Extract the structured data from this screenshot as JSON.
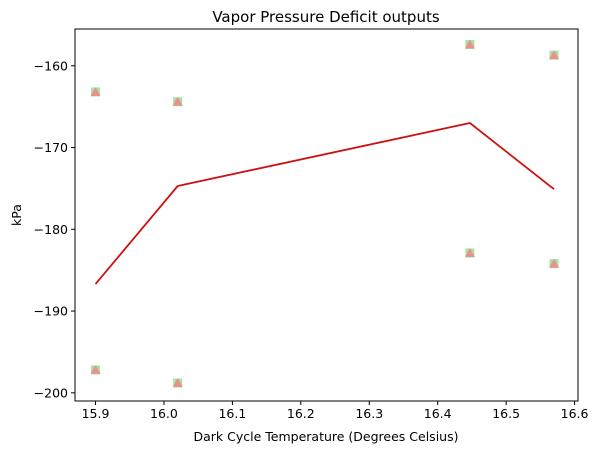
{
  "chart_data": {
    "type": "line",
    "title": "Vapor Pressure Deficit outputs",
    "xlabel": "Dark Cycle Temperature (Degrees Celsius)",
    "ylabel": "kPa",
    "xlim": [
      15.87,
      16.605
    ],
    "ylim": [
      -201.0,
      -155.5
    ],
    "xticks": [
      15.9,
      16.0,
      16.1,
      16.2,
      16.3,
      16.4,
      16.5,
      16.6
    ],
    "xtick_labels": [
      "15.9",
      "16.0",
      "16.1",
      "16.2",
      "16.3",
      "16.4",
      "16.5",
      "16.6"
    ],
    "yticks": [
      -200,
      -190,
      -180,
      -170,
      -160
    ],
    "ytick_labels": [
      "−200",
      "−190",
      "−180",
      "−170",
      "−160"
    ],
    "grid": false,
    "series": [
      {
        "type": "line",
        "color": "#cc1111",
        "x": [
          15.9,
          16.02,
          16.447,
          16.57
        ],
        "y": [
          -186.7,
          -174.7,
          -167.0,
          -175.1
        ]
      },
      {
        "type": "scatter",
        "marker": "square",
        "color": "#90e090",
        "x": [
          15.9,
          15.9,
          16.02,
          16.02,
          16.447,
          16.447,
          16.57,
          16.57
        ],
        "y": [
          -163.2,
          -197.2,
          -164.4,
          -198.8,
          -157.4,
          -182.9,
          -158.7,
          -184.2
        ]
      },
      {
        "type": "scatter",
        "marker": "triangle",
        "color": "#f08888",
        "x": [
          15.9,
          15.9,
          16.02,
          16.02,
          16.447,
          16.447,
          16.57,
          16.57
        ],
        "y": [
          -163.2,
          -197.2,
          -164.4,
          -198.8,
          -157.4,
          -182.9,
          -158.7,
          -184.2
        ]
      }
    ]
  }
}
